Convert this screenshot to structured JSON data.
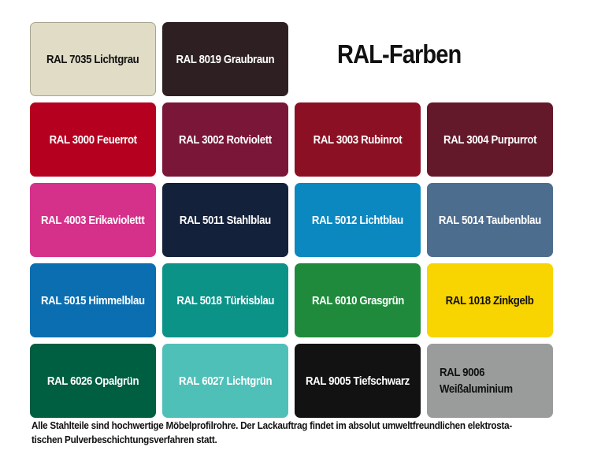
{
  "title": "RAL-Farben",
  "swatches": [
    {
      "label": "RAL 7035 Lichtgrau",
      "color": "#e0dcc6",
      "text_color": "#111111"
    },
    {
      "label": "RAL 8019 Graubraun",
      "color": "#2e2022",
      "text_color": "#ffffff"
    },
    {
      "label": "RAL 3000 Feuerrot",
      "color": "#b5001f",
      "text_color": "#ffffff"
    },
    {
      "label": "RAL 3002 Rotviolett",
      "color": "#7a1638",
      "text_color": "#ffffff"
    },
    {
      "label": "RAL 3003 Rubinrot",
      "color": "#8c1023",
      "text_color": "#ffffff"
    },
    {
      "label": "RAL 3004 Purpurrot",
      "color": "#64192b",
      "text_color": "#ffffff"
    },
    {
      "label": "RAL 4003 Erikaviolettt",
      "color": "#d5308a",
      "text_color": "#ffffff"
    },
    {
      "label": "RAL 5011 Stahlblau",
      "color": "#14213a",
      "text_color": "#ffffff"
    },
    {
      "label": "RAL 5012 Lichtblau",
      "color": "#0b88c0",
      "text_color": "#ffffff"
    },
    {
      "label": "RAL 5014 Taubenblau",
      "color": "#4d6d8f",
      "text_color": "#ffffff"
    },
    {
      "label": "RAL 5015 Himmelblau",
      "color": "#0b6eb0",
      "text_color": "#ffffff"
    },
    {
      "label": "RAL 5018 Türkisblau",
      "color": "#0c9388",
      "text_color": "#ffffff"
    },
    {
      "label": "RAL 6010 Grasgrün",
      "color": "#1f8a3b",
      "text_color": "#ffffff"
    },
    {
      "label": "RAL 1018 Zinkgelb",
      "color": "#f8d400",
      "text_color": "#111111"
    },
    {
      "label": "RAL 6026 Opalgrün",
      "color": "#005e41",
      "text_color": "#ffffff"
    },
    {
      "label": "RAL 6027 Lichtgrün",
      "color": "#4fc0b8",
      "text_color": "#ffffff"
    },
    {
      "label": "RAL 9005 Tiefschwarz",
      "color": "#121212",
      "text_color": "#ffffff"
    },
    {
      "label": "RAL 9006 Weißaluminium",
      "color": "#9a9c9c",
      "text_color": "#111111"
    }
  ],
  "footer": {
    "line1": "Alle Stahlteile sind hochwertige Möbelprofilrohre. Der Lackauftrag findet im absolut umweltfreundlichen elektrosta-",
    "line2": "tischen Pulverbeschichtungsverfahren statt."
  }
}
